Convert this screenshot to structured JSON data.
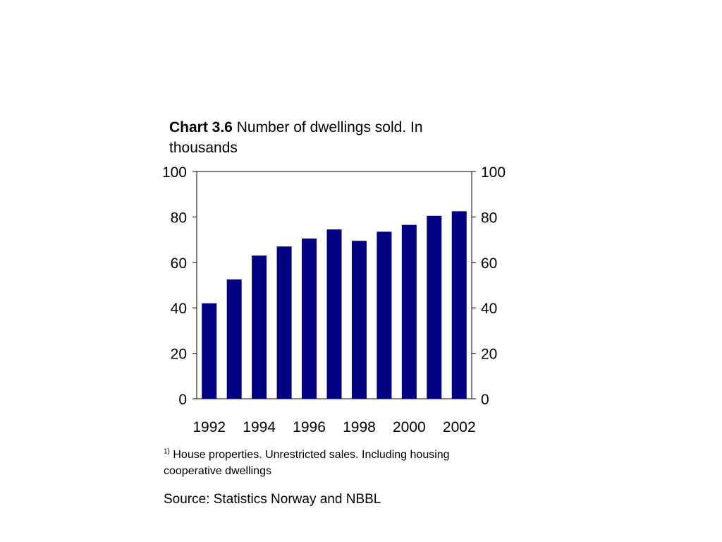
{
  "title": {
    "label": "Chart 3.6",
    "text": "Number of dwellings sold. In thousands"
  },
  "footnote": {
    "marker": "1)",
    "text": "House properties. Unrestricted sales. Including housing cooperative dwellings"
  },
  "source": "Source: Statistics Norway and NBBL",
  "colors": {
    "bar": "#000080",
    "axis": "#000000"
  },
  "chart_data": {
    "type": "bar",
    "categories": [
      "1992",
      "1993",
      "1994",
      "1995",
      "1996",
      "1997",
      "1998",
      "1999",
      "2000",
      "2001",
      "2002"
    ],
    "tick_labels": [
      "1992",
      "",
      "1994",
      "",
      "1996",
      "",
      "1998",
      "",
      "2000",
      "",
      "2002"
    ],
    "values": [
      42,
      52.5,
      63,
      67,
      70.5,
      74.5,
      69.5,
      73.5,
      76.5,
      80.5,
      82.5
    ],
    "ylim": [
      0,
      100
    ],
    "yticks": [
      "0",
      "20",
      "40",
      "60",
      "80",
      "100"
    ],
    "y2ticks": [
      "0",
      "20",
      "40",
      "60",
      "80",
      "100"
    ],
    "grid": false,
    "legend": "none"
  }
}
